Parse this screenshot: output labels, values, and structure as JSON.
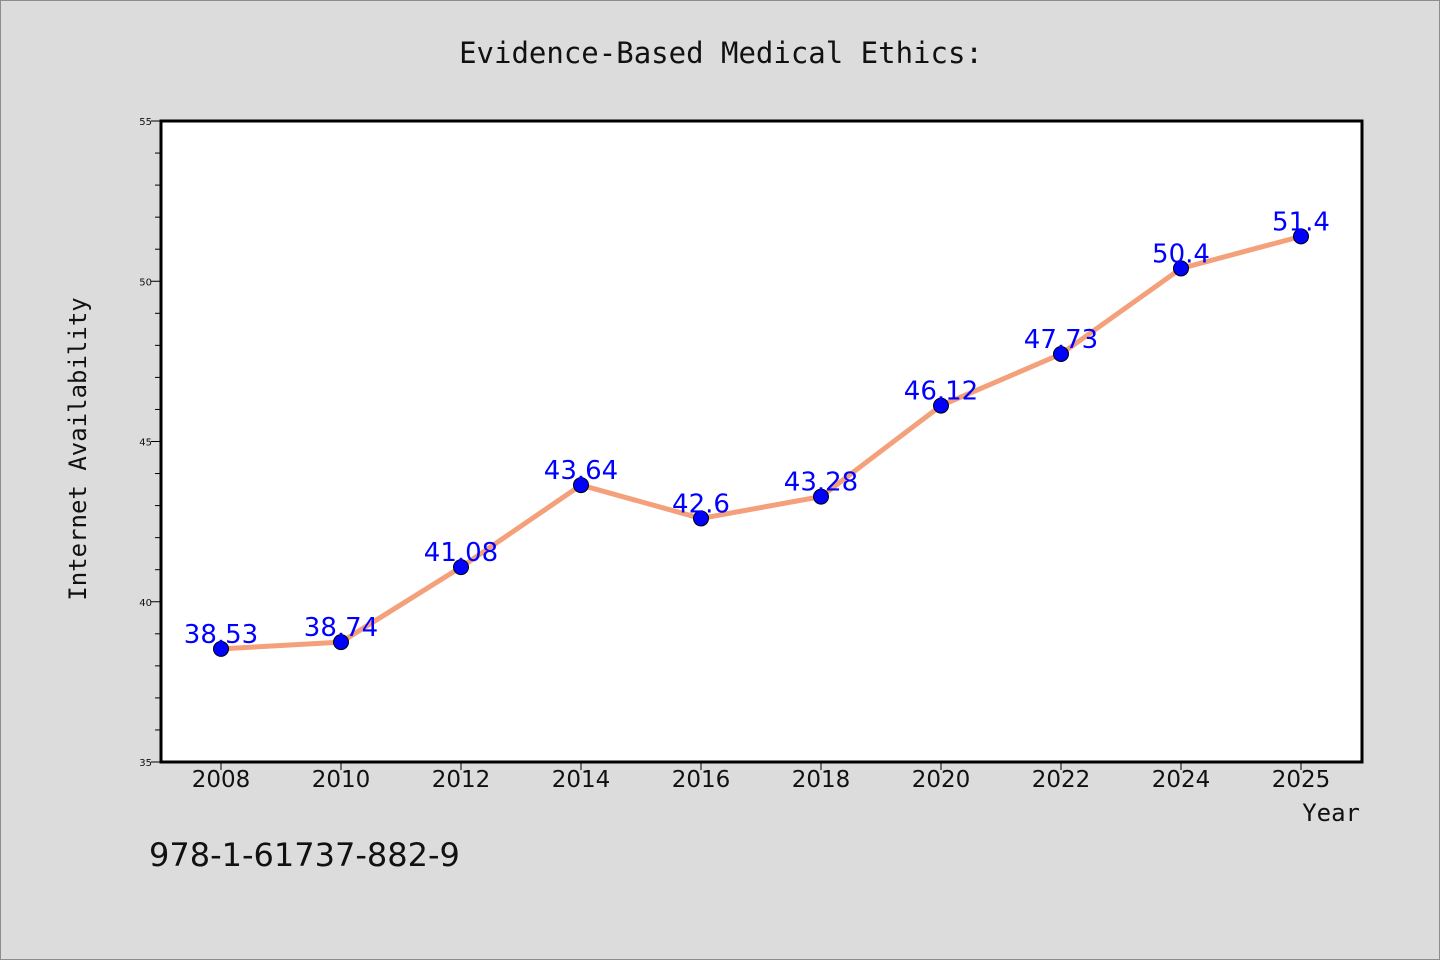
{
  "chart_data": {
    "type": "line",
    "title": "Evidence-Based Medical Ethics:",
    "xlabel": "Year",
    "ylabel": "Internet Availability",
    "categories": [
      "2008",
      "2010",
      "2012",
      "2014",
      "2016",
      "2018",
      "2020",
      "2022",
      "2024",
      "2025"
    ],
    "series": [
      {
        "values": [
          38.53,
          38.74,
          41.08,
          43.64,
          42.6,
          43.28,
          46.12,
          47.73,
          50.4,
          51.4
        ],
        "labels": [
          "38.53",
          "38.74",
          "41.08",
          "43.64",
          "42.6",
          "43.28",
          "46.12",
          "47.73",
          "50.4",
          "51.4"
        ],
        "line_color": "#f4a07a",
        "marker_color": "#0000ff",
        "label_color": "#0000ff"
      }
    ],
    "ylim": [
      35,
      55
    ],
    "yticks": [
      "35",
      "40",
      "45",
      "50",
      "55"
    ],
    "grid": false,
    "legend": "none"
  },
  "footer_text": "978-1-61737-882-9",
  "colors": {
    "background": "#dcdcdc",
    "plot_background": "#ffffff",
    "axes": "#000000"
  }
}
